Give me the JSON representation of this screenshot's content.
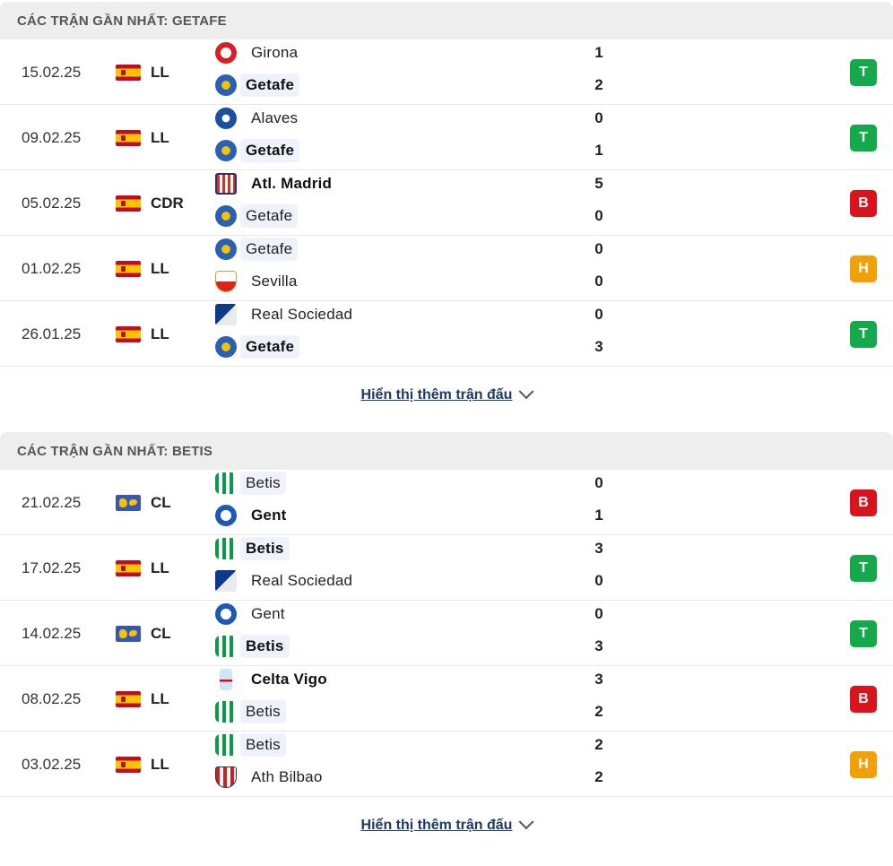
{
  "sections": [
    {
      "title": "CÁC TRẬN GẦN NHẤT: GETAFE",
      "more_label": "Hiển thị thêm trận đấu",
      "matches": [
        {
          "date": "15.02.25",
          "flag": "spain",
          "comp": "LL",
          "home": {
            "name": "Girona",
            "logo": "girona-logo",
            "bold": false,
            "highlight": false,
            "score": "1"
          },
          "away": {
            "name": "Getafe",
            "logo": "getafe-logo",
            "bold": true,
            "highlight": true,
            "score": "2"
          },
          "result": "T"
        },
        {
          "date": "09.02.25",
          "flag": "spain",
          "comp": "LL",
          "home": {
            "name": "Alaves",
            "logo": "alaves-logo",
            "bold": false,
            "highlight": false,
            "score": "0"
          },
          "away": {
            "name": "Getafe",
            "logo": "getafe-logo",
            "bold": true,
            "highlight": true,
            "score": "1"
          },
          "result": "T"
        },
        {
          "date": "05.02.25",
          "flag": "spain",
          "comp": "CDR",
          "home": {
            "name": "Atl. Madrid",
            "logo": "atl-madrid-logo",
            "bold": true,
            "highlight": false,
            "score": "5"
          },
          "away": {
            "name": "Getafe",
            "logo": "getafe-logo",
            "bold": false,
            "highlight": true,
            "score": "0"
          },
          "result": "B"
        },
        {
          "date": "01.02.25",
          "flag": "spain",
          "comp": "LL",
          "home": {
            "name": "Getafe",
            "logo": "getafe-logo",
            "bold": false,
            "highlight": true,
            "score": "0"
          },
          "away": {
            "name": "Sevilla",
            "logo": "sevilla-logo",
            "bold": false,
            "highlight": false,
            "score": "0"
          },
          "result": "H"
        },
        {
          "date": "26.01.25",
          "flag": "spain",
          "comp": "LL",
          "home": {
            "name": "Real Sociedad",
            "logo": "real-sociedad-logo",
            "bold": false,
            "highlight": false,
            "score": "0"
          },
          "away": {
            "name": "Getafe",
            "logo": "getafe-logo",
            "bold": true,
            "highlight": true,
            "score": "3"
          },
          "result": "T"
        }
      ]
    },
    {
      "title": "CÁC TRẬN GẦN NHẤT: BETIS",
      "more_label": "Hiển thị thêm trận đấu",
      "matches": [
        {
          "date": "21.02.25",
          "flag": "world",
          "comp": "CL",
          "home": {
            "name": "Betis",
            "logo": "betis-logo",
            "bold": false,
            "highlight": true,
            "score": "0"
          },
          "away": {
            "name": "Gent",
            "logo": "gent-logo",
            "bold": true,
            "highlight": false,
            "score": "1"
          },
          "result": "B"
        },
        {
          "date": "17.02.25",
          "flag": "spain",
          "comp": "LL",
          "home": {
            "name": "Betis",
            "logo": "betis-logo",
            "bold": true,
            "highlight": true,
            "score": "3"
          },
          "away": {
            "name": "Real Sociedad",
            "logo": "real-sociedad-logo",
            "bold": false,
            "highlight": false,
            "score": "0"
          },
          "result": "T"
        },
        {
          "date": "14.02.25",
          "flag": "world",
          "comp": "CL",
          "home": {
            "name": "Gent",
            "logo": "gent-logo",
            "bold": false,
            "highlight": false,
            "score": "0"
          },
          "away": {
            "name": "Betis",
            "logo": "betis-logo",
            "bold": true,
            "highlight": true,
            "score": "3"
          },
          "result": "T"
        },
        {
          "date": "08.02.25",
          "flag": "spain",
          "comp": "LL",
          "home": {
            "name": "Celta Vigo",
            "logo": "celta-vigo-logo",
            "bold": true,
            "highlight": false,
            "score": "3"
          },
          "away": {
            "name": "Betis",
            "logo": "betis-logo",
            "bold": false,
            "highlight": true,
            "score": "2"
          },
          "result": "B"
        },
        {
          "date": "03.02.25",
          "flag": "spain",
          "comp": "LL",
          "home": {
            "name": "Betis",
            "logo": "betis-logo",
            "bold": false,
            "highlight": true,
            "score": "2"
          },
          "away": {
            "name": "Ath Bilbao",
            "logo": "ath-bilbao-logo",
            "bold": false,
            "highlight": false,
            "score": "2"
          },
          "result": "H"
        }
      ]
    }
  ],
  "colors": {
    "win": "#14a94b",
    "loss": "#d9141c",
    "draw": "#f2a007",
    "header_bg": "#eeeeee",
    "team_highlight_bg": "#eef3fb",
    "link": "#1c3a66"
  }
}
